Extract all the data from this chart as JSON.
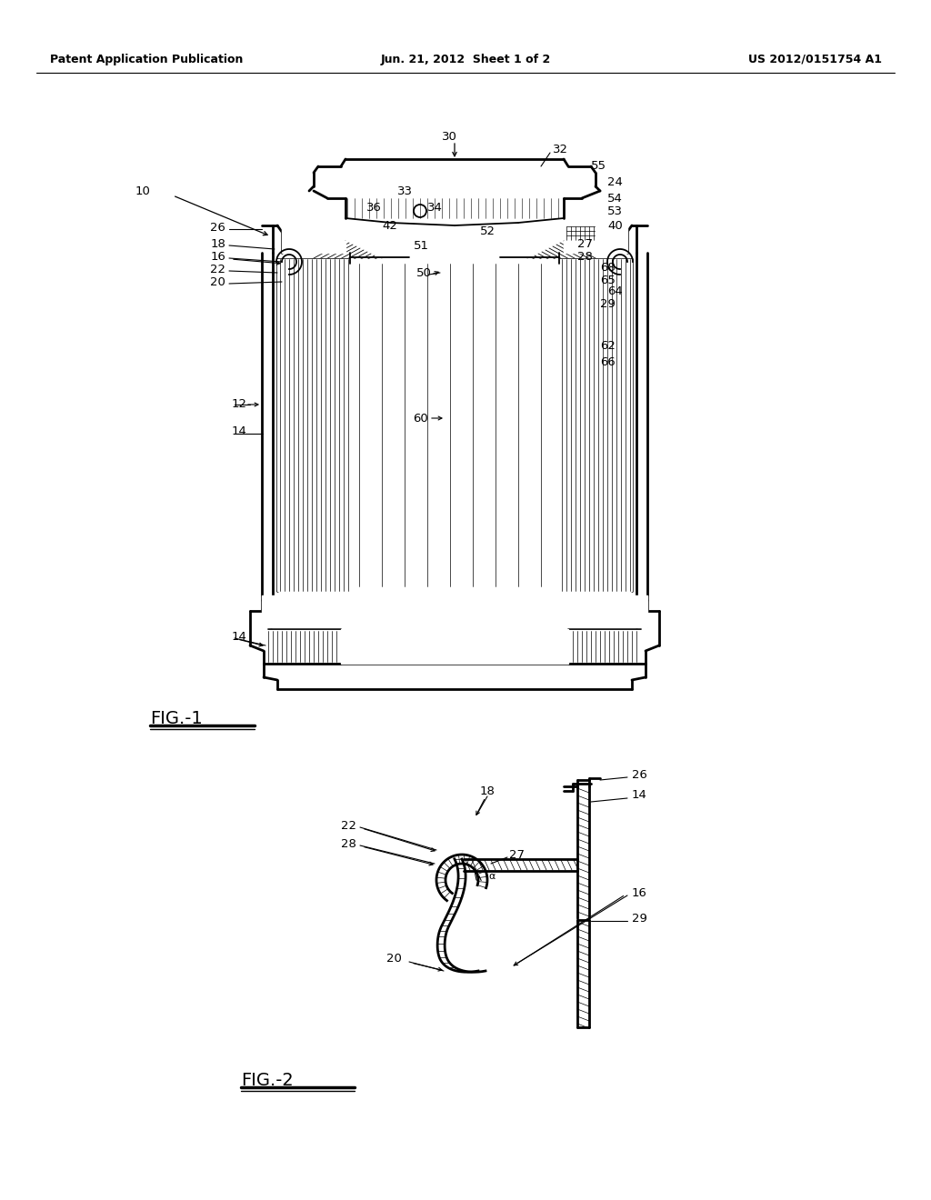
{
  "bg_color": "#ffffff",
  "text_color": "#000000",
  "header_left": "Patent Application Publication",
  "header_center": "Jun. 21, 2012  Sheet 1 of 2",
  "header_right": "US 2012/0151754 A1",
  "fig1_label": "FIG.-1",
  "fig2_label": "FIG.-2",
  "line_color": "#000000",
  "line_width": 1.3,
  "label_fontsize": 9.5,
  "header_fontsize": 9,
  "fig_label_fontsize": 14
}
